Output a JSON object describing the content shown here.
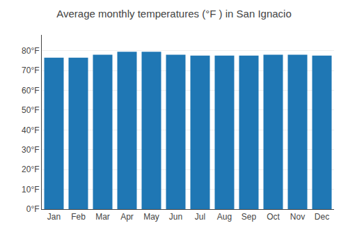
{
  "chart_data": {
    "type": "bar",
    "title": "Average monthly temperatures (°F ) in San Ignacio",
    "categories": [
      "Jan",
      "Feb",
      "Mar",
      "Apr",
      "May",
      "Jun",
      "Jul",
      "Aug",
      "Sep",
      "Oct",
      "Nov",
      "Dec"
    ],
    "values": [
      76.5,
      76.5,
      78.0,
      79.5,
      79.5,
      78.0,
      77.5,
      77.5,
      77.5,
      78.0,
      78.0,
      77.5
    ],
    "ylim": [
      0,
      88
    ],
    "yticks": [
      {
        "value": 0,
        "label": "0°F"
      },
      {
        "value": 10,
        "label": "10°F"
      },
      {
        "value": 20,
        "label": "20°F"
      },
      {
        "value": 30,
        "label": "30°F"
      },
      {
        "value": 40,
        "label": "40°F"
      },
      {
        "value": 50,
        "label": "50°F"
      },
      {
        "value": 60,
        "label": "60°F"
      },
      {
        "value": 70,
        "label": "70°F"
      },
      {
        "value": 80,
        "label": "80°F"
      }
    ],
    "grid": true
  }
}
